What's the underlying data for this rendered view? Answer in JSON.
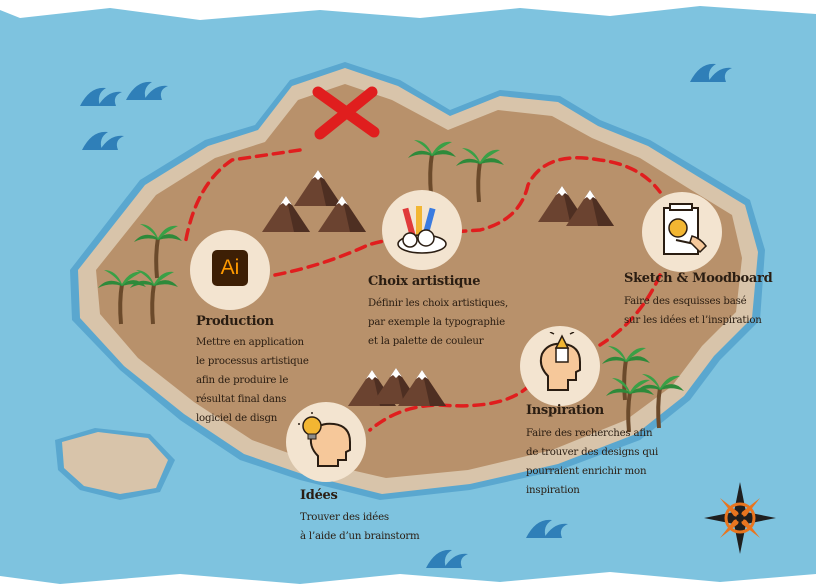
{
  "colors": {
    "sea": "#7ec3df",
    "sea_edge": "#5aa7cf",
    "island": "#b8916b",
    "beach": "#d8c4aa",
    "path": "#e01e1e",
    "x_mark": "#e01e1e",
    "circle": "#f3e4d0",
    "text": "#2a1d12"
  },
  "icons": {
    "production": "adobe-illustrator-icon",
    "choix": "art-supplies-icon",
    "sketch": "sketch-pad-icon",
    "inspiration": "thinking-head-icon",
    "idees": "lightbulb-head-icon",
    "compass": "compass-rose-icon",
    "treasure": "x-mark-icon"
  },
  "production": {
    "logo_text": "Ai",
    "title": "Production",
    "description": "Mettre en application\nle processus artistique\nafin de produire le\nrésultat final dans\nlogiciel de disgn"
  },
  "choix": {
    "title": "Choix artistique",
    "description": "Définir les choix artistiques,\npar exemple la typographie\net la palette de couleur"
  },
  "sketch": {
    "title": "Sketch & Moodboard",
    "description": "Faire des esquisses basé\nsur les idées et l’inspiration"
  },
  "inspiration": {
    "title": "Inspiration",
    "description": "Faire des recherches afin\nde trouver des designs qui\npourraient enrichir mon\ninspiration"
  },
  "idees": {
    "title": "Idées",
    "description": "Trouver des idées\nà l’aide d’un brainstorm"
  }
}
